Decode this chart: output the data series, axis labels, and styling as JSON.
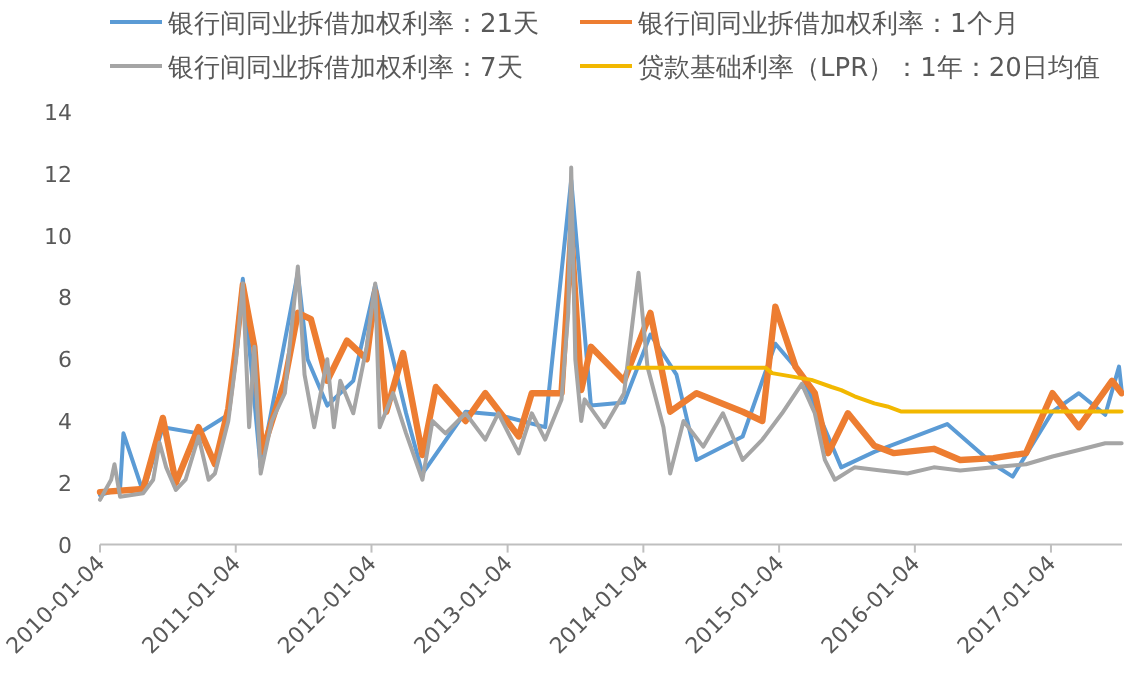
{
  "chart_data": {
    "type": "line",
    "legend": "top",
    "xlim": [
      "2010-01-04",
      "2017-07-14"
    ],
    "ylim": [
      0,
      14
    ],
    "xticks": [
      "2010-01-04",
      "2011-01-04",
      "2012-01-04",
      "2013-01-04",
      "2014-01-04",
      "2015-01-04",
      "2016-01-04",
      "2017-01-04"
    ],
    "yticks": [
      0,
      2,
      4,
      6,
      8,
      10,
      12,
      14
    ],
    "series": [
      {
        "name": "银行间同业拆借加权利率：21天",
        "color": "#5b9bd5",
        "x": [
          "2010-01-04",
          "2010-02-27",
          "2010-03-08",
          "2010-04-30",
          "2010-06-22",
          "2010-09-26",
          "2010-12-15",
          "2011-01-23",
          "2011-03-12",
          "2011-06-20",
          "2011-07-16",
          "2011-09-07",
          "2011-11-16",
          "2012-01-14",
          "2012-04-06",
          "2012-05-20",
          "2012-09-13",
          "2012-12-10",
          "2013-04-15",
          "2013-06-24",
          "2013-08-16",
          "2013-11-13",
          "2014-01-23",
          "2014-04-03",
          "2014-05-27",
          "2014-09-28",
          "2014-12-25",
          "2015-03-06",
          "2015-04-28",
          "2015-06-20",
          "2015-09-17",
          "2016-03-31",
          "2016-08-02",
          "2016-09-23",
          "2017-01-08",
          "2017-03-20",
          "2017-05-30",
          "2017-07-06",
          "2017-07-13"
        ],
        "values": [
          1.6,
          1.8,
          3.6,
          1.7,
          3.8,
          3.6,
          4.2,
          8.6,
          2.5,
          8.8,
          6.0,
          4.5,
          5.3,
          8.4,
          4.25,
          2.3,
          4.3,
          4.2,
          3.8,
          11.8,
          4.5,
          4.6,
          6.8,
          5.5,
          2.74,
          3.5,
          6.5,
          5.5,
          4.0,
          2.5,
          3.0,
          3.9,
          2.6,
          2.2,
          4.3,
          4.9,
          4.2,
          5.76,
          5.0
        ]
      },
      {
        "name": "银行间同业拆借加权利率：1个月",
        "color": "#ed7d31",
        "x": [
          "2010-01-04",
          "2010-04-30",
          "2010-06-22",
          "2010-07-27",
          "2010-09-26",
          "2010-11-09",
          "2010-12-15",
          "2011-01-05",
          "2011-01-23",
          "2011-02-23",
          "2011-03-16",
          "2011-05-16",
          "2011-06-20",
          "2011-07-25",
          "2011-09-07",
          "2011-10-30",
          "2011-12-22",
          "2012-01-14",
          "2012-02-13",
          "2012-03-29",
          "2012-05-20",
          "2012-06-25",
          "2012-09-13",
          "2012-11-05",
          "2013-02-03",
          "2013-03-10",
          "2013-05-29",
          "2013-06-24",
          "2013-07-21",
          "2013-08-16",
          "2013-11-13",
          "2014-01-23",
          "2014-03-17",
          "2014-05-27",
          "2014-09-28",
          "2014-11-20",
          "2014-12-25",
          "2015-02-17",
          "2015-04-10",
          "2015-05-16",
          "2015-07-08",
          "2015-09-17",
          "2015-11-09",
          "2016-02-24",
          "2016-05-05",
          "2016-08-02",
          "2016-10-29",
          "2017-01-08",
          "2017-03-20",
          "2017-06-17",
          "2017-07-13"
        ],
        "values": [
          1.7,
          1.8,
          4.1,
          2.0,
          3.8,
          2.6,
          4.4,
          6.4,
          8.4,
          6.4,
          3.0,
          5.3,
          7.5,
          7.3,
          5.3,
          6.6,
          6.0,
          8.2,
          4.3,
          6.2,
          2.9,
          5.1,
          4.0,
          4.9,
          3.5,
          4.9,
          4.9,
          10.1,
          5.0,
          6.4,
          5.3,
          7.5,
          4.3,
          4.9,
          4.3,
          4.0,
          7.7,
          5.76,
          4.9,
          2.96,
          4.25,
          3.2,
          2.96,
          3.1,
          2.74,
          2.8,
          2.96,
          4.9,
          3.8,
          5.3,
          4.9
        ]
      },
      {
        "name": "银行间同业拆借加权利率：7天",
        "color": "#a5a5a5",
        "x": [
          "2010-01-04",
          "2010-02-03",
          "2010-02-12",
          "2010-02-27",
          "2010-04-30",
          "2010-05-27",
          "2010-06-13",
          "2010-07-01",
          "2010-07-27",
          "2010-08-22",
          "2010-09-26",
          "2010-10-23",
          "2010-11-09",
          "2010-12-15",
          "2011-01-05",
          "2011-01-23",
          "2011-02-09",
          "2011-02-23",
          "2011-03-12",
          "2011-04-11",
          "2011-05-16",
          "2011-06-20",
          "2011-07-08",
          "2011-08-03",
          "2011-09-07",
          "2011-09-25",
          "2011-10-12",
          "2011-11-16",
          "2011-12-22",
          "2012-01-14",
          "2012-01-26",
          "2012-03-02",
          "2012-04-06",
          "2012-05-20",
          "2012-06-16",
          "2012-07-21",
          "2012-09-13",
          "2012-11-05",
          "2012-12-10",
          "2013-02-03",
          "2013-03-10",
          "2013-04-15",
          "2013-05-29",
          "2013-06-16",
          "2013-06-24",
          "2013-07-05",
          "2013-07-21",
          "2013-07-30",
          "2013-09-21",
          "2013-11-13",
          "2013-12-22",
          "2014-01-15",
          "2014-02-27",
          "2014-03-17",
          "2014-04-22",
          "2014-06-14",
          "2014-08-06",
          "2014-09-28",
          "2014-11-20",
          "2015-01-12",
          "2015-03-06",
          "2015-04-10",
          "2015-05-07",
          "2015-06-03",
          "2015-07-26",
          "2015-10-05",
          "2015-12-15",
          "2016-02-24",
          "2016-05-05",
          "2016-08-02",
          "2016-10-29",
          "2017-01-08",
          "2017-03-20",
          "2017-05-30",
          "2017-07-13"
        ],
        "values": [
          1.45,
          2.1,
          2.6,
          1.55,
          1.66,
          2.1,
          3.3,
          2.5,
          1.77,
          2.1,
          3.5,
          2.1,
          2.3,
          4.0,
          6.0,
          8.45,
          3.8,
          6.4,
          2.3,
          4.0,
          4.9,
          9.0,
          5.5,
          3.8,
          6.0,
          3.8,
          5.3,
          4.25,
          6.4,
          8.45,
          3.8,
          4.9,
          3.6,
          2.1,
          4.0,
          3.6,
          4.25,
          3.4,
          4.25,
          2.95,
          4.25,
          3.4,
          4.7,
          7.5,
          12.2,
          6.0,
          4.0,
          4.7,
          3.8,
          4.9,
          8.8,
          5.76,
          3.8,
          2.3,
          4.0,
          3.17,
          4.25,
          2.74,
          3.4,
          4.25,
          5.2,
          4.25,
          2.74,
          2.1,
          2.5,
          2.4,
          2.3,
          2.5,
          2.4,
          2.5,
          2.6,
          2.85,
          3.06,
          3.28,
          3.28
        ]
      },
      {
        "name": "贷款基础利率（LPR）：1年：20日均值",
        "color": "#f2b800",
        "x": [
          "2013-11-25",
          "2014-11-29",
          "2014-12-16",
          "2015-04-01",
          "2015-05-25",
          "2015-06-20",
          "2015-07-26",
          "2015-09-17",
          "2015-10-22",
          "2015-11-27",
          "2017-07-13"
        ],
        "values": [
          5.72,
          5.72,
          5.55,
          5.33,
          5.1,
          5.0,
          4.8,
          4.57,
          4.47,
          4.31,
          4.31
        ]
      }
    ]
  }
}
